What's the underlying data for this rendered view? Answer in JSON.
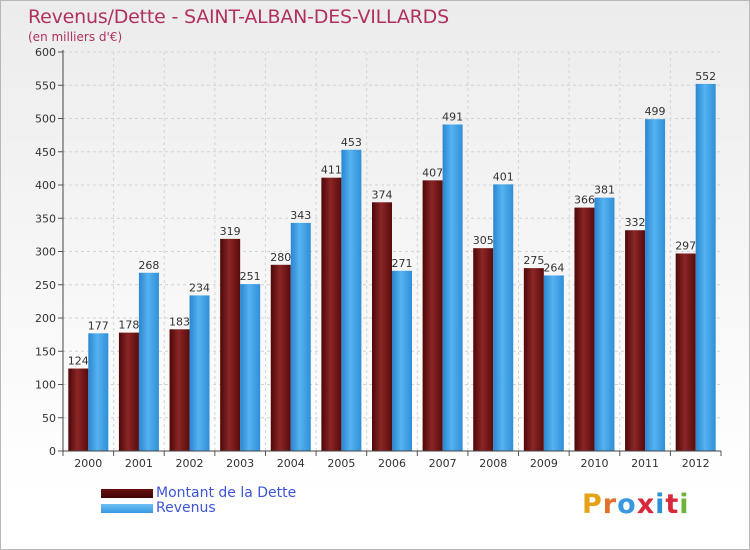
{
  "header": {
    "title": "Revenus/Dette - SAINT-ALBAN-DES-VILLARDS",
    "subtitle": "(en milliers d'€)"
  },
  "legend": {
    "items": [
      {
        "label": "Montant de la Dette",
        "color": "#6b0f0f"
      },
      {
        "label": "Revenus",
        "color": "#3a98e0"
      }
    ]
  },
  "logo": {
    "letters": [
      "P",
      "r",
      "o",
      "x",
      "i",
      "t",
      "i"
    ],
    "colors": [
      "#e8a21a",
      "#e0702a",
      "#3a98e0",
      "#d8283a",
      "#2d8fd6",
      "#d8283a",
      "#6fb33a"
    ]
  },
  "chart_data": {
    "type": "bar",
    "categories": [
      "2000",
      "2001",
      "2002",
      "2003",
      "2004",
      "2005",
      "2006",
      "2007",
      "2008",
      "2009",
      "2010",
      "2011",
      "2012"
    ],
    "series": [
      {
        "name": "Montant de la Dette",
        "color": "#6b0f0f",
        "values": [
          124,
          178,
          183,
          319,
          280,
          411,
          374,
          407,
          305,
          275,
          366,
          332,
          297
        ]
      },
      {
        "name": "Revenus",
        "color": "#3a98e0",
        "values": [
          177,
          268,
          234,
          251,
          343,
          453,
          271,
          491,
          401,
          264,
          381,
          499,
          552
        ]
      }
    ],
    "yticks": [
      0,
      50,
      100,
      150,
      200,
      250,
      300,
      350,
      400,
      450,
      500,
      550,
      600
    ],
    "ylim": [
      0,
      600
    ],
    "grid": true,
    "legend": "bottom-left"
  }
}
